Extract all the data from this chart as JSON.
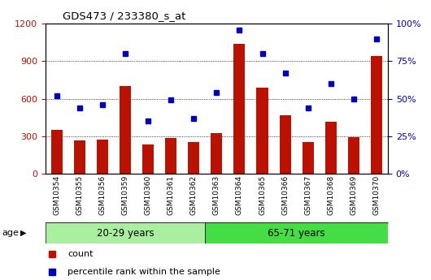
{
  "title": "GDS473 / 233380_s_at",
  "categories": [
    "GSM10354",
    "GSM10355",
    "GSM10356",
    "GSM10359",
    "GSM10360",
    "GSM10361",
    "GSM10362",
    "GSM10363",
    "GSM10364",
    "GSM10365",
    "GSM10366",
    "GSM10367",
    "GSM10368",
    "GSM10369",
    "GSM10370"
  ],
  "counts": [
    350,
    265,
    275,
    700,
    235,
    285,
    255,
    325,
    1040,
    690,
    470,
    255,
    415,
    295,
    940
  ],
  "percentiles": [
    52,
    44,
    46,
    80,
    35,
    49,
    37,
    54,
    96,
    80,
    67,
    44,
    60,
    50,
    90
  ],
  "bar_color": "#BB1100",
  "dot_color": "#0000BB",
  "ylim_left": [
    0,
    1200
  ],
  "ylim_right": [
    0,
    100
  ],
  "yticks_left": [
    0,
    300,
    600,
    900,
    1200
  ],
  "yticks_right": [
    0,
    25,
    50,
    75,
    100
  ],
  "yticklabels_right": [
    "0%",
    "25%",
    "50%",
    "75%",
    "100%"
  ],
  "group1_label": "20-29 years",
  "group2_label": "65-71 years",
  "n_group1": 7,
  "n_group2": 8,
  "age_label": "age",
  "legend_count": "count",
  "legend_percentile": "percentile rank within the sample",
  "group1_color": "#AAEEA0",
  "group2_color": "#44DD44",
  "left_color": "#BB1100",
  "right_color": "#0000BB",
  "tick_area_color": "#C8C8C8",
  "background_color": "#FFFFFF"
}
